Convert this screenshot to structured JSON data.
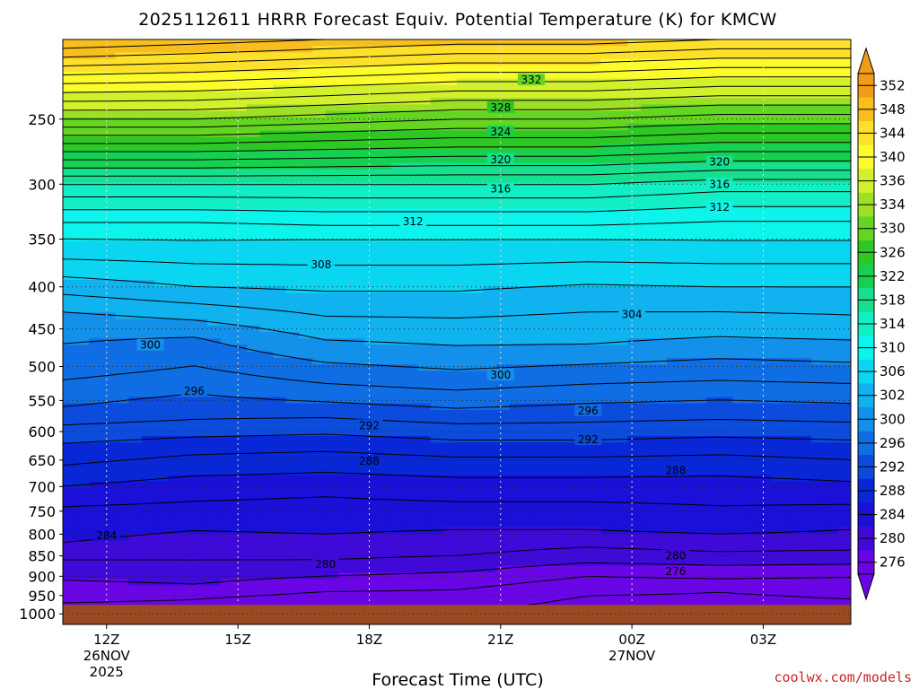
{
  "title": "2025112611 HRRR Forecast Equiv. Potential Temperature (K) for KMCW",
  "x_axis_label": "Forecast Time (UTC)",
  "credit": "coolwx.com/models",
  "colors": {
    "ground": "#9a4a22",
    "credit": "#cc2222"
  },
  "chart_data": {
    "type": "heatmap",
    "title": "2025112611 HRRR Forecast Equiv. Potential Temperature (K) for KMCW",
    "xlabel": "Forecast Time (UTC)",
    "ylabel": "",
    "x_ticks": [
      {
        "hour": 1,
        "label": "12Z",
        "sub1": "26NOV",
        "sub2": "2025"
      },
      {
        "hour": 4,
        "label": "15Z",
        "sub1": "",
        "sub2": ""
      },
      {
        "hour": 7,
        "label": "18Z",
        "sub1": "",
        "sub2": ""
      },
      {
        "hour": 10,
        "label": "21Z",
        "sub1": "",
        "sub2": ""
      },
      {
        "hour": 13,
        "label": "00Z",
        "sub1": "27NOV",
        "sub2": ""
      },
      {
        "hour": 16,
        "label": "03Z",
        "sub1": "",
        "sub2": ""
      }
    ],
    "x_range_hours": [
      0,
      18
    ],
    "y_ticks": [
      250,
      300,
      350,
      400,
      450,
      500,
      550,
      600,
      650,
      700,
      750,
      800,
      850,
      900,
      950,
      1000
    ],
    "y_range_hpa": [
      200,
      1030
    ],
    "surface_pressure_hpa": 975,
    "colorbar": [
      {
        "value": 352,
        "color": "#f29b18"
      },
      {
        "value": 348,
        "color": "#f7be1e"
      },
      {
        "value": 344,
        "color": "#fde02a"
      },
      {
        "value": 340,
        "color": "#fcfc2c"
      },
      {
        "value": 336,
        "color": "#d2f02c"
      },
      {
        "value": 334,
        "color": "#9ee026"
      },
      {
        "value": 330,
        "color": "#64d622"
      },
      {
        "value": 326,
        "color": "#2ec825"
      },
      {
        "value": 322,
        "color": "#18d050"
      },
      {
        "value": 318,
        "color": "#16e090"
      },
      {
        "value": 314,
        "color": "#12efc4"
      },
      {
        "value": 310,
        "color": "#0cf4ec"
      },
      {
        "value": 306,
        "color": "#0ad6f2"
      },
      {
        "value": 302,
        "color": "#10b2ef"
      },
      {
        "value": 300,
        "color": "#1390ea"
      },
      {
        "value": 296,
        "color": "#106ee4"
      },
      {
        "value": 292,
        "color": "#0c4cdd"
      },
      {
        "value": 288,
        "color": "#0828d8"
      },
      {
        "value": 284,
        "color": "#1a10d8"
      },
      {
        "value": 280,
        "color": "#3f0ad8"
      },
      {
        "value": 276,
        "color": "#6a06e6"
      }
    ],
    "profiles_hours": [
      0,
      3,
      6,
      9,
      12,
      15,
      18
    ],
    "profiles": [
      {
        "hour": 0,
        "levels": [
          [
            200,
            352
          ],
          [
            250,
            334
          ],
          [
            300,
            318
          ],
          [
            340,
            311
          ],
          [
            370,
            308
          ],
          [
            440,
            301
          ],
          [
            500,
            299
          ],
          [
            560,
            296
          ],
          [
            620,
            292
          ],
          [
            680,
            289
          ],
          [
            740,
            286
          ],
          [
            820,
            284
          ],
          [
            880,
            281
          ],
          [
            940,
            279
          ],
          [
            1000,
            277
          ]
        ]
      },
      {
        "hour": 3,
        "levels": [
          [
            200,
            351
          ],
          [
            250,
            334
          ],
          [
            300,
            318
          ],
          [
            340,
            311
          ],
          [
            400,
            306
          ],
          [
            460,
            300
          ],
          [
            520,
            297
          ],
          [
            580,
            294
          ],
          [
            640,
            290
          ],
          [
            700,
            287
          ],
          [
            760,
            285
          ],
          [
            860,
            282
          ],
          [
            920,
            280
          ],
          [
            960,
            278
          ],
          [
            1000,
            277
          ]
        ]
      },
      {
        "hour": 6,
        "levels": [
          [
            200,
            350
          ],
          [
            250,
            333
          ],
          [
            300,
            318
          ],
          [
            350,
            310
          ],
          [
            420,
            305
          ],
          [
            480,
            301
          ],
          [
            540,
            297
          ],
          [
            590,
            293
          ],
          [
            650,
            289
          ],
          [
            720,
            286
          ],
          [
            800,
            284
          ],
          [
            860,
            282
          ],
          [
            920,
            279
          ],
          [
            960,
            277
          ],
          [
            1000,
            276
          ]
        ]
      },
      {
        "hour": 9,
        "levels": [
          [
            200,
            349
          ],
          [
            250,
            332
          ],
          [
            300,
            318
          ],
          [
            350,
            310
          ],
          [
            420,
            305
          ],
          [
            490,
            301
          ],
          [
            550,
            297
          ],
          [
            600,
            293
          ],
          [
            660,
            289
          ],
          [
            730,
            286
          ],
          [
            790,
            284
          ],
          [
            850,
            282
          ],
          [
            910,
            279
          ],
          [
            960,
            277
          ],
          [
            1000,
            276
          ]
        ]
      },
      {
        "hour": 12,
        "levels": [
          [
            200,
            349
          ],
          [
            250,
            332
          ],
          [
            300,
            318
          ],
          [
            350,
            310
          ],
          [
            410,
            305
          ],
          [
            470,
            302
          ],
          [
            540,
            297
          ],
          [
            600,
            293
          ],
          [
            660,
            289
          ],
          [
            730,
            286
          ],
          [
            790,
            284
          ],
          [
            850,
            281
          ],
          [
            900,
            278
          ],
          [
            950,
            276
          ],
          [
            1000,
            275
          ]
        ]
      },
      {
        "hour": 15,
        "levels": [
          [
            200,
            348
          ],
          [
            250,
            331
          ],
          [
            300,
            317
          ],
          [
            340,
            311
          ],
          [
            400,
            306
          ],
          [
            460,
            302
          ],
          [
            520,
            298
          ],
          [
            580,
            294
          ],
          [
            640,
            290
          ],
          [
            700,
            287
          ],
          [
            780,
            285
          ],
          [
            840,
            282
          ],
          [
            890,
            279
          ],
          [
            940,
            276
          ],
          [
            1000,
            275
          ]
        ]
      },
      {
        "hour": 18,
        "levels": [
          [
            200,
            348
          ],
          [
            250,
            331
          ],
          [
            300,
            317
          ],
          [
            340,
            311
          ],
          [
            400,
            306
          ],
          [
            450,
            303
          ],
          [
            510,
            299
          ],
          [
            570,
            295
          ],
          [
            630,
            291
          ],
          [
            690,
            288
          ],
          [
            760,
            285
          ],
          [
            820,
            283
          ],
          [
            870,
            280
          ],
          [
            920,
            277
          ],
          [
            1000,
            275
          ]
        ]
      }
    ],
    "contour_labels": [
      {
        "value": 332,
        "hour": 10.7,
        "pressure": 224
      },
      {
        "value": 328,
        "hour": 10.0,
        "pressure": 242
      },
      {
        "value": 324,
        "hour": 10.0,
        "pressure": 259
      },
      {
        "value": 320,
        "hour": 10.0,
        "pressure": 280
      },
      {
        "value": 320,
        "hour": 15.0,
        "pressure": 282
      },
      {
        "value": 316,
        "hour": 10.0,
        "pressure": 304
      },
      {
        "value": 316,
        "hour": 15.0,
        "pressure": 300
      },
      {
        "value": 312,
        "hour": 8.0,
        "pressure": 333
      },
      {
        "value": 312,
        "hour": 15.0,
        "pressure": 320
      },
      {
        "value": 308,
        "hour": 5.9,
        "pressure": 376
      },
      {
        "value": 304,
        "hour": 13.0,
        "pressure": 432
      },
      {
        "value": 300,
        "hour": 2.0,
        "pressure": 471
      },
      {
        "value": 300,
        "hour": 10.0,
        "pressure": 512
      },
      {
        "value": 296,
        "hour": 3.0,
        "pressure": 536
      },
      {
        "value": 296,
        "hour": 12.0,
        "pressure": 566
      },
      {
        "value": 292,
        "hour": 7.0,
        "pressure": 590
      },
      {
        "value": 292,
        "hour": 12.0,
        "pressure": 614
      },
      {
        "value": 288,
        "hour": 7.0,
        "pressure": 652
      },
      {
        "value": 288,
        "hour": 14.0,
        "pressure": 669
      },
      {
        "value": 284,
        "hour": 1.0,
        "pressure": 803
      },
      {
        "value": 280,
        "hour": 6.0,
        "pressure": 870
      },
      {
        "value": 280,
        "hour": 14.0,
        "pressure": 850
      },
      {
        "value": 276,
        "hour": 14.0,
        "pressure": 888
      }
    ],
    "legend": "right colorbar"
  }
}
